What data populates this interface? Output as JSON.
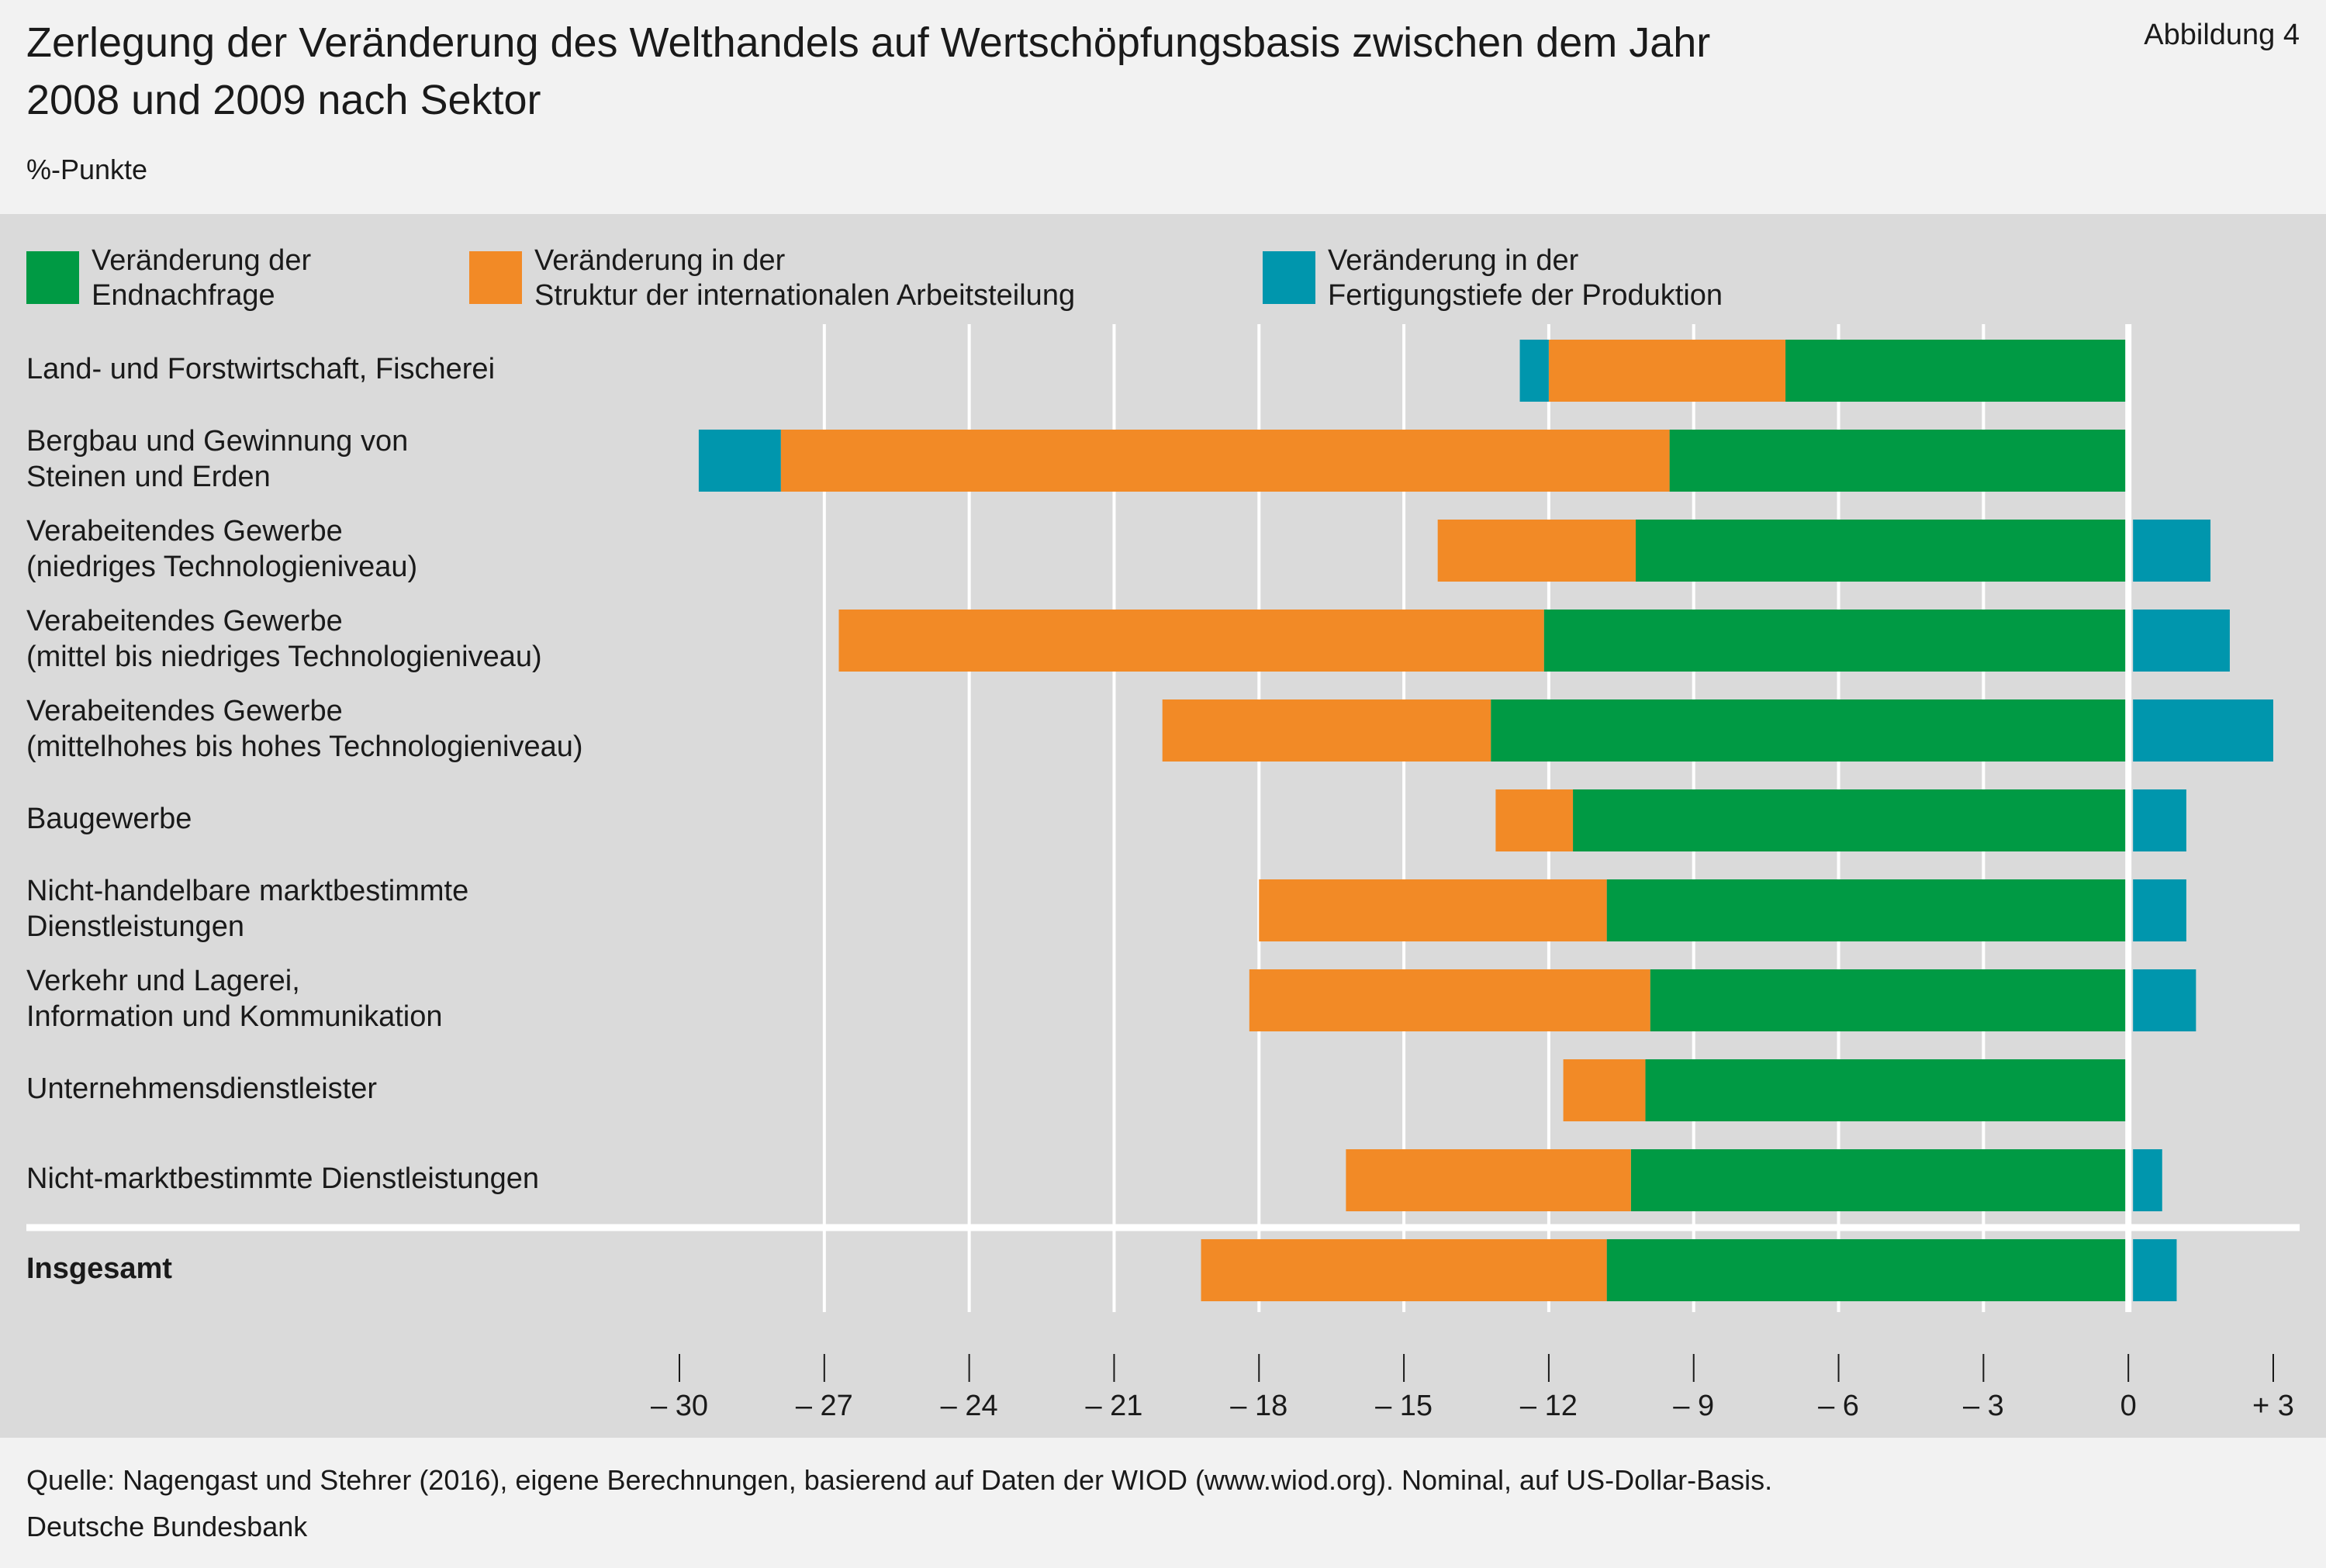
{
  "header": {
    "title": "Zerlegung der Veränderung des Welthandels auf Wertschöpfungsbasis zwischen dem Jahr 2008 und 2009 nach Sektor",
    "figure_label": "Abbildung 4",
    "unit": "%-Punkte"
  },
  "legend": [
    {
      "label": "Veränderung der Endnachfrage",
      "color": "#009a44"
    },
    {
      "label": "Veränderung in der Struktur der internationalen Arbeitsteilung",
      "color": "#f28a26"
    },
    {
      "label": "Veränderung in der Fertigungstiefe der Produktion",
      "color": "#0096ad"
    }
  ],
  "footer": {
    "source": "Quelle: Nagengast und Stehrer (2016), eigene Berechnungen, basierend auf Daten der WIOD (www.wiod.org). Nominal, auf US-Dollar-Basis.",
    "publisher": "Deutsche Bundesbank"
  },
  "chart_data": {
    "type": "bar",
    "orientation": "horizontal",
    "stacked": true,
    "xlim": [
      -30,
      3
    ],
    "x_ticks": [
      -30,
      -27,
      -24,
      -21,
      -18,
      -15,
      -12,
      -9,
      -6,
      -3,
      0,
      3
    ],
    "x_tick_labels": [
      "– 30",
      "– 27",
      "– 24",
      "– 21",
      "– 18",
      "– 15",
      "– 12",
      "– 9",
      "– 6",
      "– 3",
      "0",
      "+ 3"
    ],
    "grid": true,
    "legend_position": "top",
    "categories": [
      "Land- und Forstwirtschaft, Fischerei",
      "Bergbau und Gewinnung von\nSteinen und Erden",
      "Verabeitendes Gewerbe\n(niedriges Technologieniveau)",
      "Verabeitendes Gewerbe\n(mittel bis niedriges Technologieniveau)",
      "Verabeitendes Gewerbe\n(mittelhohes bis hohes Technologieniveau)",
      "Baugewerbe",
      "Nicht-handelbare marktbestimmte\nDienstleistungen",
      "Verkehr und Lagerei,\nInformation und Kommunikation",
      "Unternehmensdienstleister",
      "Nicht-marktbestimmte Dienstleistungen",
      "Insgesamt"
    ],
    "series": [
      {
        "name": "Veränderung der Endnachfrage",
        "values": [
          -7.1,
          -9.5,
          -10.2,
          -12.1,
          -13.2,
          -11.5,
          -10.8,
          -9.9,
          -10.0,
          -10.3,
          -10.8
        ]
      },
      {
        "name": "Veränderung in der Struktur der internationalen Arbeitsteilung",
        "values": [
          -4.9,
          -18.4,
          -4.1,
          -14.6,
          -6.8,
          -1.6,
          -7.2,
          -8.3,
          -1.7,
          -5.9,
          -8.4
        ]
      },
      {
        "name": "Veränderung in der Fertigungstiefe der Produktion",
        "values": [
          -0.6,
          -1.7,
          1.7,
          2.1,
          3.0,
          1.2,
          1.2,
          1.4,
          0.0,
          0.7,
          1.0
        ]
      }
    ]
  }
}
